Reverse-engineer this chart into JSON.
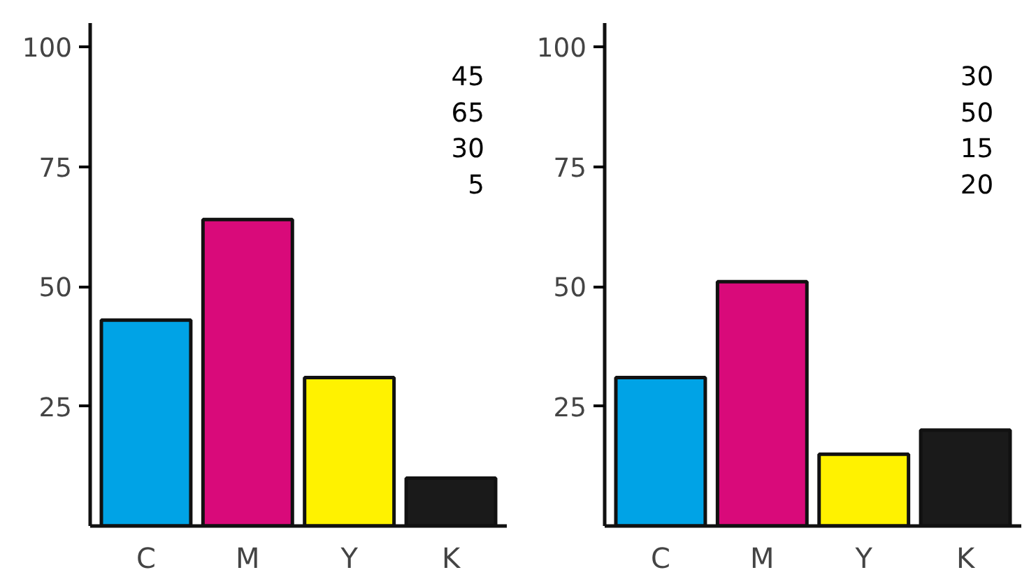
{
  "chart_data": [
    {
      "type": "bar",
      "categories": [
        "C",
        "M",
        "Y",
        "K"
      ],
      "values": [
        43,
        64,
        31,
        10
      ],
      "colors": [
        "#00a3e6",
        "#d90a7a",
        "#fff200",
        "#1a1a1a"
      ],
      "ylim": [
        0,
        105
      ],
      "yticks": [
        25,
        50,
        75,
        100
      ],
      "grid": false,
      "annotations": [
        "45",
        "65",
        "30",
        "5"
      ]
    },
    {
      "type": "bar",
      "categories": [
        "C",
        "M",
        "Y",
        "K"
      ],
      "values": [
        31,
        51,
        15,
        20
      ],
      "colors": [
        "#00a3e6",
        "#d90a7a",
        "#fff200",
        "#1a1a1a"
      ],
      "ylim": [
        0,
        105
      ],
      "yticks": [
        25,
        50,
        75,
        100
      ],
      "grid": false,
      "annotations": [
        "30",
        "50",
        "15",
        "20"
      ]
    }
  ]
}
